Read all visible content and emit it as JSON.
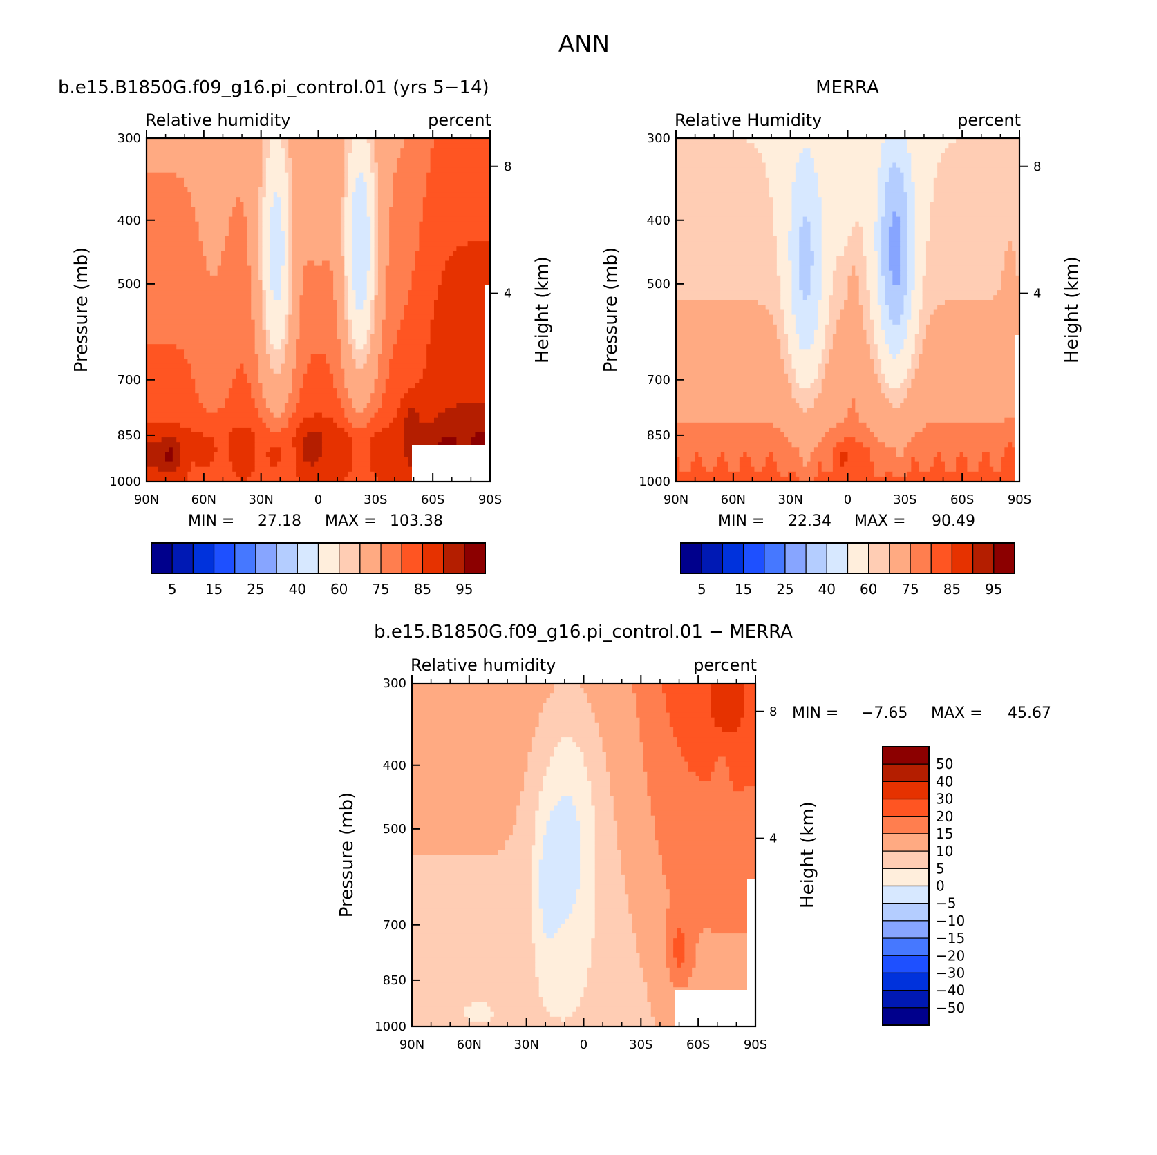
{
  "title": "ANN",
  "colors": {
    "blues": [
      "#00008c",
      "#0019b4",
      "#0032dc",
      "#1e50ff",
      "#4678ff",
      "#87a5ff",
      "#b4cdff",
      "#d7e8ff"
    ],
    "reds": [
      "#ffeedc",
      "#ffcdb4",
      "#ffaa82",
      "#ff7e4f",
      "#ff5522",
      "#e63200",
      "#b41e00",
      "#8c0000"
    ],
    "missing": "#ffffff"
  },
  "chart_data": [
    {
      "type": "heatmap",
      "id": "model",
      "title": "b.e15.B1850G.f09_g16.pi_control.01 (yrs 5−14)",
      "left_label": "Relative humidity",
      "right_label": "percent",
      "ylabel": "Pressure (mb)",
      "ylabel_right": "Height (km)",
      "x_ticks": [
        "90N",
        "60N",
        "30N",
        "0",
        "30S",
        "60S",
        "90S"
      ],
      "y_ticks": [
        "300",
        "400",
        "500",
        "700",
        "850",
        "1000"
      ],
      "y_ticks_right": [
        "8",
        "4"
      ],
      "xlim": [
        90,
        -90
      ],
      "ylim": [
        1000,
        300
      ],
      "min_label": "MIN =",
      "min_value": "27.18",
      "max_label": "MAX =",
      "max_value": "103.38",
      "colorbar": {
        "levels": [
          5,
          10,
          15,
          20,
          25,
          30,
          40,
          50,
          60,
          65,
          75,
          80,
          85,
          90,
          95
        ],
        "labels": [
          "5",
          "15",
          "25",
          "40",
          "60",
          "75",
          "85",
          "95"
        ]
      }
    },
    {
      "type": "heatmap",
      "id": "obs",
      "title": "MERRA",
      "left_label": "Relative Humidity",
      "right_label": "percent",
      "ylabel": "Pressure (mb)",
      "ylabel_right": "Height (km)",
      "x_ticks": [
        "90N",
        "60N",
        "30N",
        "0",
        "30S",
        "60S",
        "90S"
      ],
      "y_ticks": [
        "300",
        "400",
        "500",
        "700",
        "850",
        "1000"
      ],
      "y_ticks_right": [
        "8",
        "4"
      ],
      "xlim": [
        90,
        -90
      ],
      "ylim": [
        1000,
        300
      ],
      "min_label": "MIN =",
      "min_value": "22.34",
      "max_label": "MAX =",
      "max_value": "90.49",
      "colorbar": {
        "levels": [
          5,
          10,
          15,
          20,
          25,
          30,
          40,
          50,
          60,
          65,
          75,
          80,
          85,
          90,
          95
        ],
        "labels": [
          "5",
          "15",
          "25",
          "40",
          "60",
          "75",
          "85",
          "95"
        ]
      }
    },
    {
      "type": "heatmap",
      "id": "diff",
      "title": "b.e15.B1850G.f09_g16.pi_control.01 − MERRA",
      "left_label": "Relative humidity",
      "right_label": "percent",
      "ylabel": "Pressure (mb)",
      "ylabel_right": "Height (km)",
      "x_ticks": [
        "90N",
        "60N",
        "30N",
        "0",
        "30S",
        "60S",
        "90S"
      ],
      "y_ticks": [
        "300",
        "400",
        "500",
        "700",
        "850",
        "1000"
      ],
      "y_ticks_right": [
        "8",
        "4"
      ],
      "xlim": [
        90,
        -90
      ],
      "ylim": [
        1000,
        300
      ],
      "min_label": "MIN =",
      "min_value": "−7.65",
      "max_label": "MAX =",
      "max_value": "45.67",
      "colorbar": {
        "levels": [
          -50,
          -40,
          -30,
          -20,
          -15,
          -10,
          -5,
          0,
          5,
          10,
          15,
          20,
          30,
          40,
          50
        ],
        "labels": [
          "50",
          "40",
          "30",
          "20",
          "15",
          "10",
          "5",
          "0",
          "−5",
          "−10",
          "−15",
          "−20",
          "−30",
          "−40",
          "−50"
        ]
      }
    }
  ]
}
